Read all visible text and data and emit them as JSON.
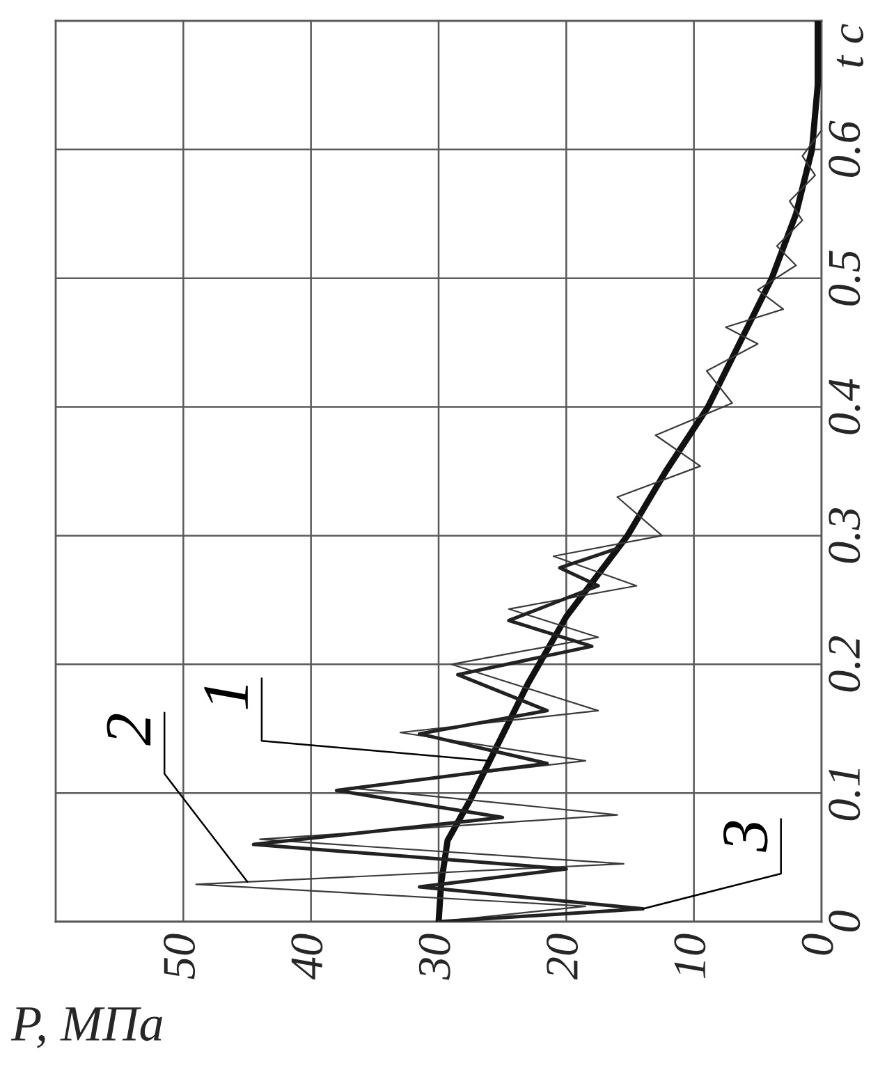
{
  "chart_data": {
    "type": "line",
    "xlabel": "P, МПа",
    "ylabel": "t c",
    "xlim": [
      60,
      0
    ],
    "xticks": [
      0,
      10,
      20,
      30,
      40,
      50
    ],
    "ylim": [
      0,
      0.7
    ],
    "yticks": [
      0,
      0.1,
      0.2,
      0.3,
      0.4,
      0.5,
      0.6
    ],
    "grid": true,
    "series": [
      {
        "name": "1",
        "color": "#111111",
        "x": [
          30,
          29.8,
          29.3,
          27.5,
          26,
          23,
          20,
          15.2,
          12.2,
          8.9,
          6.4,
          3.9,
          2,
          0.75,
          0.3,
          0.3
        ],
        "values": [
          0,
          0.03,
          0.063,
          0.095,
          0.125,
          0.185,
          0.237,
          0.3,
          0.35,
          0.4,
          0.45,
          0.5,
          0.55,
          0.6,
          0.65,
          0.7
        ]
      },
      {
        "name": "2",
        "color": "#3a3a3a",
        "x": [
          30,
          18.5,
          49,
          15.5,
          44,
          16,
          37,
          18.5,
          33,
          17.5,
          29,
          17.5,
          24.5,
          14.5,
          21,
          12.5,
          16,
          9.5,
          13,
          7,
          9,
          5,
          7.5,
          3,
          5,
          2,
          3.5,
          1.5,
          2.5,
          0.5,
          1.5,
          0,
          0
        ],
        "values": [
          0,
          0.012,
          0.029,
          0.045,
          0.064,
          0.083,
          0.104,
          0.125,
          0.147,
          0.164,
          0.2,
          0.221,
          0.243,
          0.261,
          0.284,
          0.3,
          0.33,
          0.354,
          0.378,
          0.403,
          0.428,
          0.449,
          0.462,
          0.476,
          0.491,
          0.51,
          0.525,
          0.545,
          0.56,
          0.58,
          0.595,
          0.615,
          0.63
        ]
      },
      {
        "name": "3",
        "color": "#222222",
        "x": [
          30,
          14,
          31.5,
          20,
          44.5,
          25,
          38,
          21.5,
          31.5,
          21.5,
          28.5,
          18,
          24.5,
          17.5,
          20.5,
          16
        ],
        "values": [
          0,
          0.01,
          0.027,
          0.041,
          0.06,
          0.081,
          0.102,
          0.123,
          0.146,
          0.164,
          0.192,
          0.214,
          0.234,
          0.261,
          0.275,
          0.29
        ]
      }
    ]
  }
}
